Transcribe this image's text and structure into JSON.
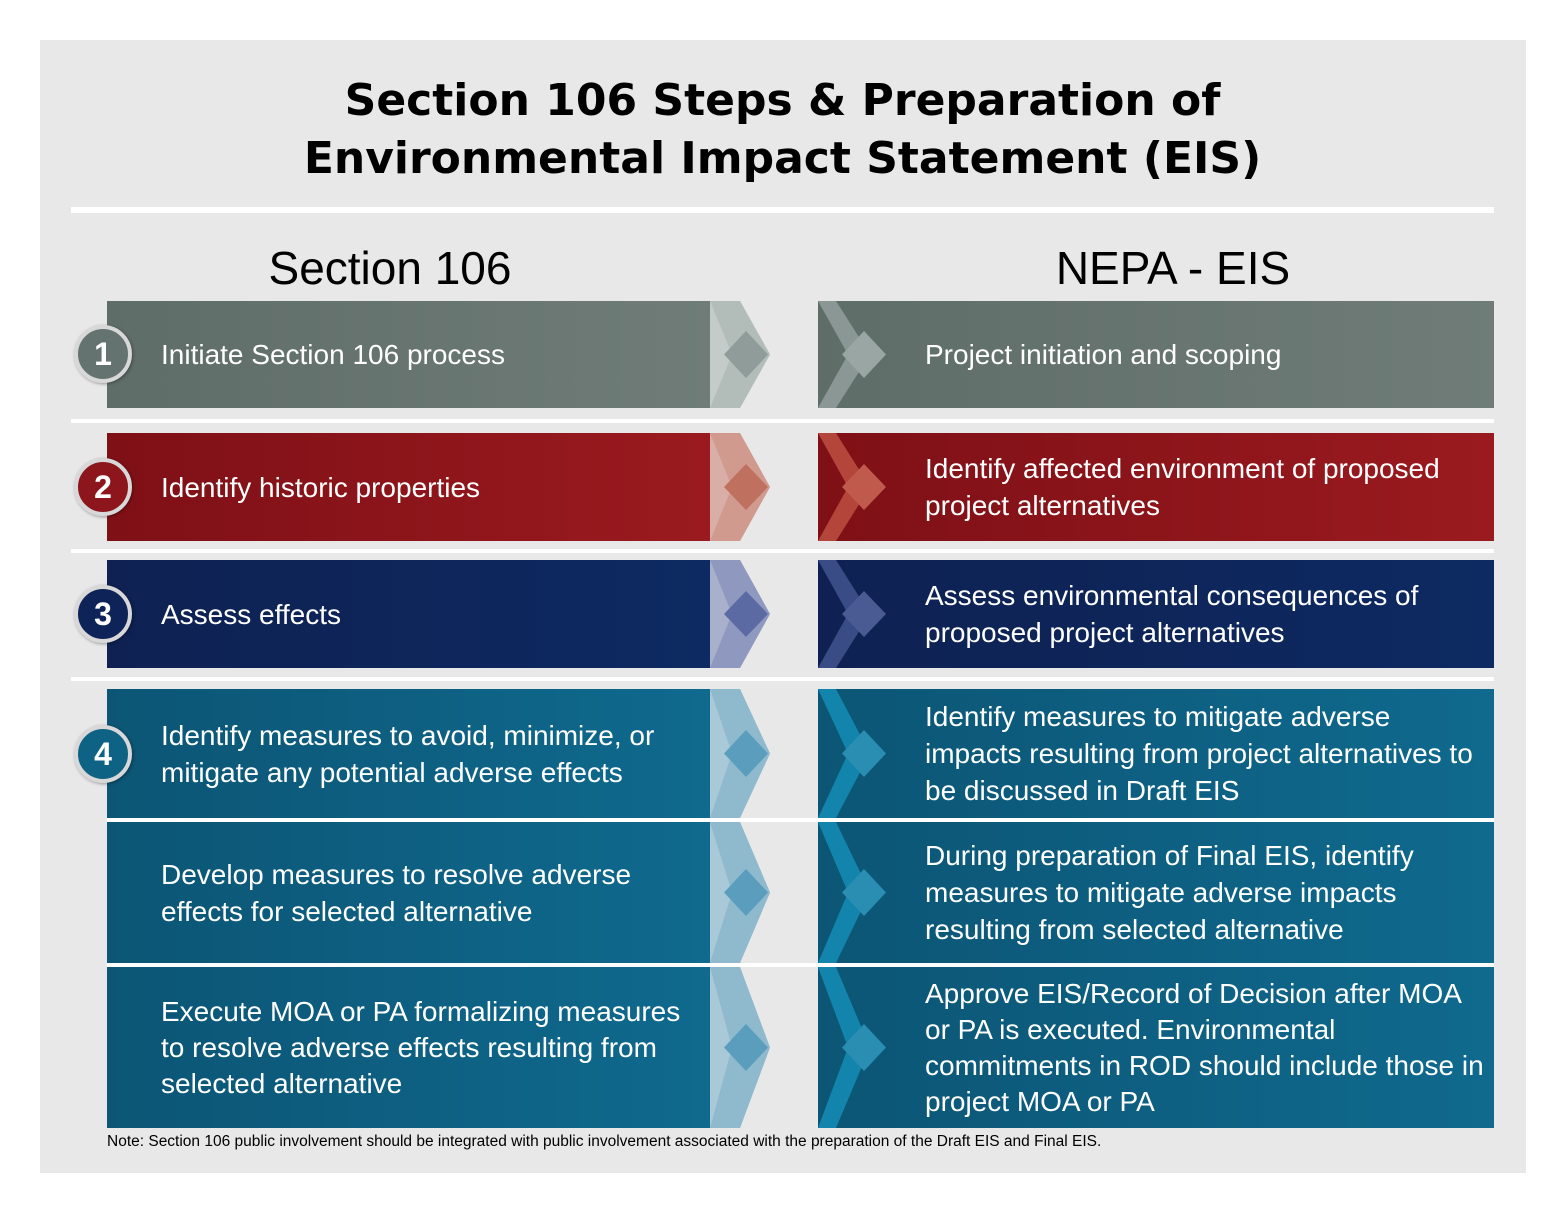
{
  "title": {
    "line1": "Section 106 Steps & Preparation of",
    "line2": "Environmental Impact Statement (EIS)"
  },
  "columns": {
    "left": "Section 106",
    "right": "NEPA - EIS"
  },
  "steps": [
    {
      "number": "1",
      "section106": "Initiate Section 106 process",
      "nepa": "Project initiation and scoping"
    },
    {
      "number": "2",
      "section106": "Identify historic properties",
      "nepa": "Identify affected environment of proposed project alternatives"
    },
    {
      "number": "3",
      "section106": "Assess effects",
      "nepa": "Assess environmental consequences of proposed project alternatives"
    },
    {
      "number": "4",
      "rows": [
        {
          "section106": "Identify measures to avoid, minimize, or mitigate any potential adverse effects",
          "nepa": "Identify measures to mitigate adverse impacts resulting from project alternatives to be discussed in Draft EIS"
        },
        {
          "section106": "Develop measures to resolve adverse effects for selected alternative",
          "nepa": "During preparation of Final EIS, identify measures to mitigate adverse impacts resulting from selected alternative"
        },
        {
          "section106": "Execute MOA or PA formalizing measures to resolve adverse effects resulting from selected alternative",
          "nepa": "Approve EIS/Record of Decision after MOA or PA is executed. Environmental commitments in ROD should include those in project MOA or PA"
        }
      ]
    }
  ],
  "note": "Note: Section 106 public involvement should be integrated with public involvement associated with the preparation of the Draft EIS and Final EIS.",
  "colors": {
    "step1": "#657370",
    "step2": "#8c161b",
    "step3": "#0e2459",
    "step4": "#0e6284"
  }
}
